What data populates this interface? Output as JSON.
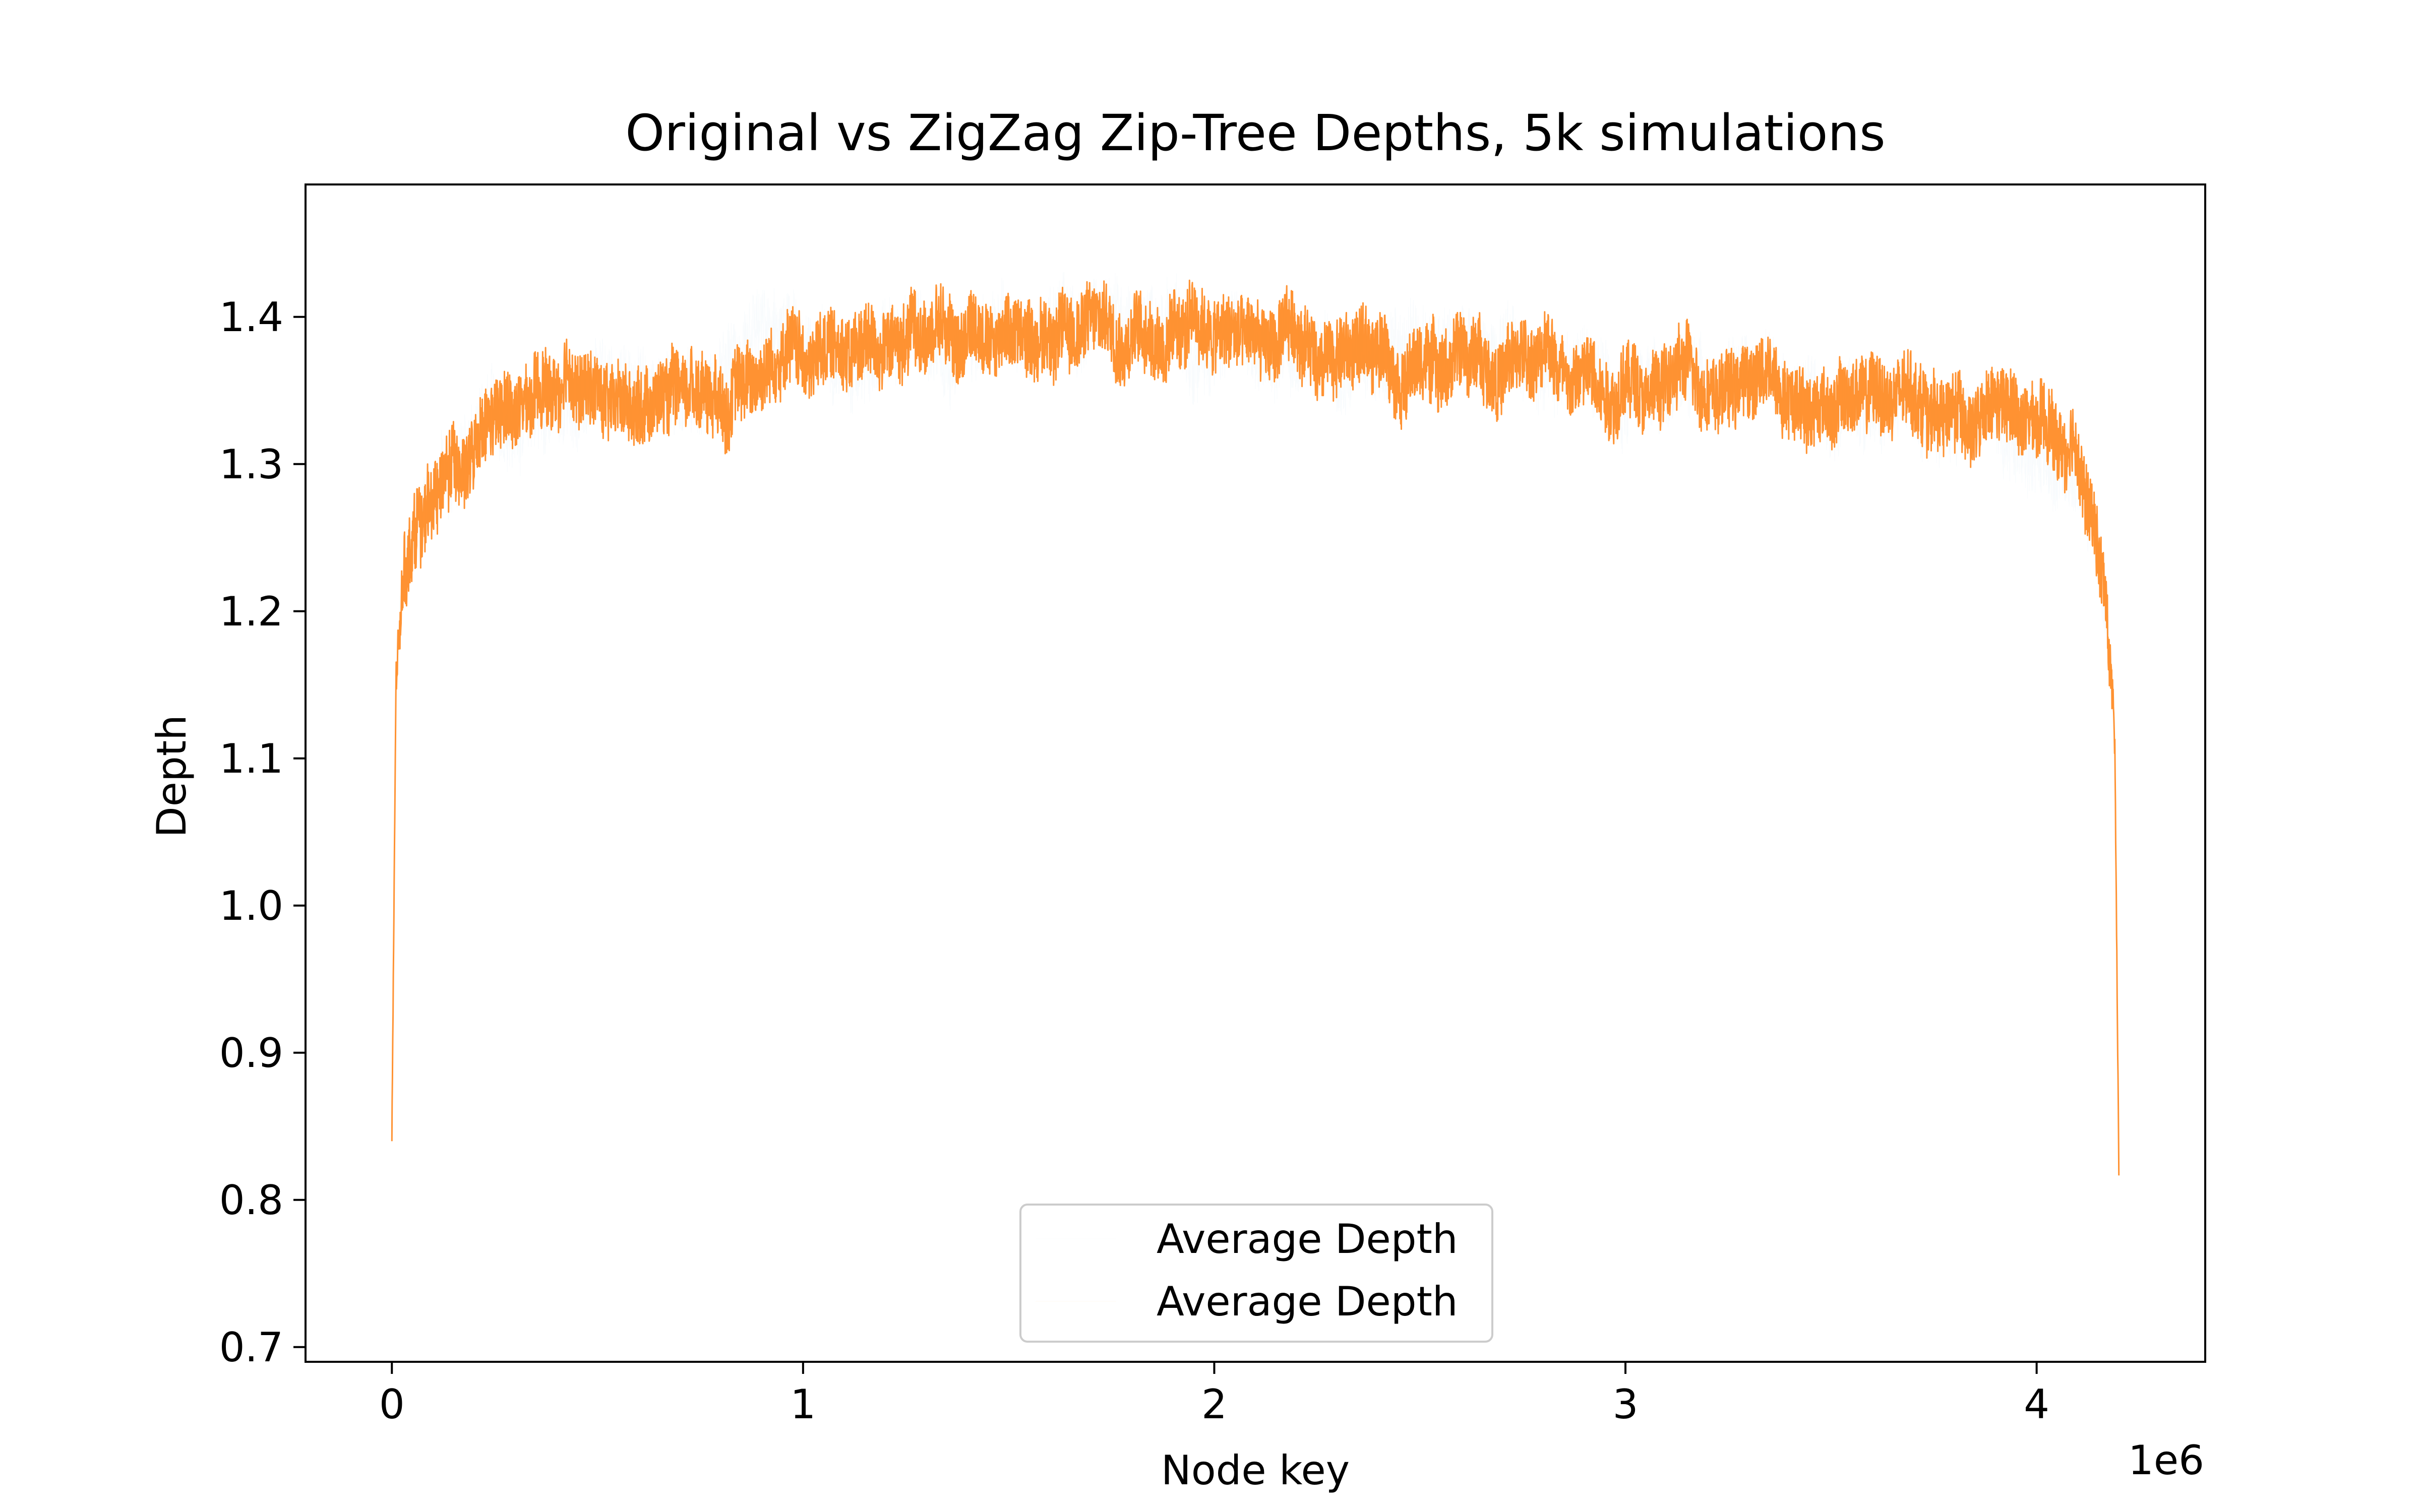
{
  "chart_data": {
    "type": "line",
    "title": "Original vs ZigZag Zip-Tree Depths, 5k simulations",
    "xlabel": "Node key",
    "ylabel": "Depth",
    "x_offset_label": "1e6",
    "xlim": [
      -210000,
      4410000
    ],
    "ylim": [
      0.69,
      1.49
    ],
    "x_ticks": [
      0,
      1,
      2,
      3,
      4
    ],
    "x_tick_labels": [
      "0",
      "1",
      "2",
      "3",
      "4"
    ],
    "y_ticks": [
      0.7,
      0.8,
      0.9,
      1.0,
      1.1,
      1.2,
      1.3,
      1.4
    ],
    "y_tick_labels": [
      "0.7",
      "0.8",
      "0.9",
      "1.0",
      "1.1",
      "1.2",
      "1.3",
      "1.4"
    ],
    "grid": false,
    "legend_position": "lower center",
    "series": [
      {
        "name": "Average Depth",
        "color": "#1f77b4",
        "x": [
          0,
          10000,
          30000,
          60000,
          100000,
          150000,
          200000,
          300000,
          400000,
          500000,
          600000,
          700000,
          800000,
          900000,
          1000000,
          1100000,
          1200000,
          1300000,
          1400000,
          1500000,
          1600000,
          1700000,
          1800000,
          1900000,
          2000000,
          2100000,
          2200000,
          2300000,
          2400000,
          2500000,
          2600000,
          2700000,
          2800000,
          2900000,
          3000000,
          3100000,
          3200000,
          3300000,
          3400000,
          3500000,
          3600000,
          3700000,
          3800000,
          3900000,
          4000000,
          4050000,
          4100000,
          4140000,
          4170000,
          4190000,
          4200000
        ],
        "y": [
          0.84,
          1.15,
          1.22,
          1.26,
          1.28,
          1.3,
          1.31,
          1.33,
          1.34,
          1.345,
          1.35,
          1.355,
          1.36,
          1.37,
          1.375,
          1.38,
          1.385,
          1.385,
          1.39,
          1.39,
          1.395,
          1.4,
          1.4,
          1.39,
          1.385,
          1.38,
          1.38,
          1.38,
          1.38,
          1.375,
          1.375,
          1.37,
          1.37,
          1.365,
          1.36,
          1.36,
          1.36,
          1.36,
          1.355,
          1.35,
          1.345,
          1.34,
          1.335,
          1.33,
          1.32,
          1.305,
          1.29,
          1.25,
          1.2,
          1.12,
          0.82
        ]
      },
      {
        "name": "Average Depth",
        "color": "#ff7f0e",
        "x": [
          0,
          10000,
          30000,
          60000,
          100000,
          150000,
          200000,
          300000,
          400000,
          500000,
          600000,
          700000,
          800000,
          900000,
          1000000,
          1100000,
          1200000,
          1300000,
          1400000,
          1500000,
          1600000,
          1700000,
          1800000,
          1900000,
          2000000,
          2100000,
          2200000,
          2300000,
          2400000,
          2500000,
          2600000,
          2700000,
          2800000,
          2900000,
          3000000,
          3100000,
          3200000,
          3300000,
          3400000,
          3500000,
          3600000,
          3700000,
          3800000,
          3900000,
          4000000,
          4050000,
          4100000,
          4140000,
          4170000,
          4190000,
          4200000
        ],
        "y": [
          0.84,
          1.15,
          1.22,
          1.26,
          1.28,
          1.3,
          1.31,
          1.33,
          1.34,
          1.345,
          1.35,
          1.355,
          1.36,
          1.37,
          1.375,
          1.38,
          1.385,
          1.385,
          1.39,
          1.39,
          1.395,
          1.4,
          1.4,
          1.39,
          1.385,
          1.38,
          1.38,
          1.38,
          1.38,
          1.375,
          1.375,
          1.37,
          1.37,
          1.365,
          1.36,
          1.36,
          1.36,
          1.36,
          1.355,
          1.35,
          1.345,
          1.34,
          1.335,
          1.33,
          1.32,
          1.305,
          1.29,
          1.25,
          1.2,
          1.12,
          0.82
        ]
      }
    ],
    "noise_amplitude": 0.025
  }
}
